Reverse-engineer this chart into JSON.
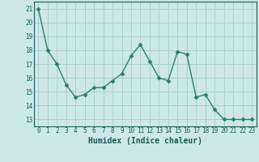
{
  "x": [
    0,
    1,
    2,
    3,
    4,
    5,
    6,
    7,
    8,
    9,
    10,
    11,
    12,
    13,
    14,
    15,
    16,
    17,
    18,
    19,
    20,
    21,
    22,
    23
  ],
  "y": [
    21,
    18,
    17,
    15.5,
    14.6,
    14.8,
    15.3,
    15.3,
    15.8,
    16.3,
    17.6,
    18.4,
    17.2,
    16.0,
    15.8,
    17.9,
    17.7,
    14.6,
    14.8,
    13.7,
    13.0,
    13.0,
    13.0,
    13.0
  ],
  "xlabel": "Humidex (Indice chaleur)",
  "ylim": [
    12.5,
    21.5
  ],
  "xlim": [
    -0.5,
    23.5
  ],
  "yticks": [
    13,
    14,
    15,
    16,
    17,
    18,
    19,
    20,
    21
  ],
  "xticks": [
    0,
    1,
    2,
    3,
    4,
    5,
    6,
    7,
    8,
    9,
    10,
    11,
    12,
    13,
    14,
    15,
    16,
    17,
    18,
    19,
    20,
    21,
    22,
    23
  ],
  "line_color": "#2e7d6e",
  "marker_color": "#2e7d6e",
  "bg_color": "#cce8e8",
  "grid_color": "#aad0d0",
  "label_color": "#1a5c5c",
  "tick_color": "#1a5c5c"
}
